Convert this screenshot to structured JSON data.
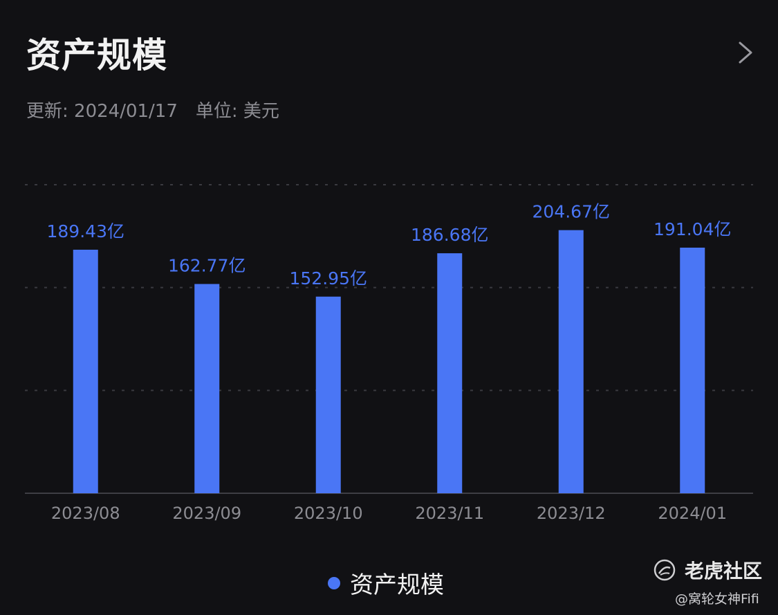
{
  "header": {
    "title": "资产规模",
    "updated": "更新: 2024/01/17",
    "unit": "单位: 美元"
  },
  "colors": {
    "background": "#111114",
    "bar": "#4a76f5",
    "label": "#4a76f5",
    "tick": "#8d8d93",
    "grid": "#3a3a40"
  },
  "icons": {
    "nav": "chevron-right-icon",
    "logo": "tiger-logo-icon"
  },
  "chart_data": {
    "type": "bar",
    "categories": [
      "2023/08",
      "2023/09",
      "2023/10",
      "2023/11",
      "2023/12",
      "2024/01"
    ],
    "values": [
      189.43,
      162.77,
      152.95,
      186.68,
      204.67,
      191.04
    ],
    "data_labels": [
      "189.43亿",
      "162.77亿",
      "152.95亿",
      "186.68亿",
      "204.67亿",
      "191.04亿"
    ],
    "series": [
      {
        "name": "资产规模",
        "values": [
          189.43,
          162.77,
          152.95,
          186.68,
          204.67,
          191.04
        ]
      }
    ],
    "unit": "亿",
    "ylim": [
      0,
      240
    ],
    "grid": true,
    "legend_position": "bottom"
  },
  "legend": {
    "label": "资产规模"
  },
  "watermark": {
    "brand": "老虎社区",
    "author": "@窝轮女神Fifi"
  }
}
